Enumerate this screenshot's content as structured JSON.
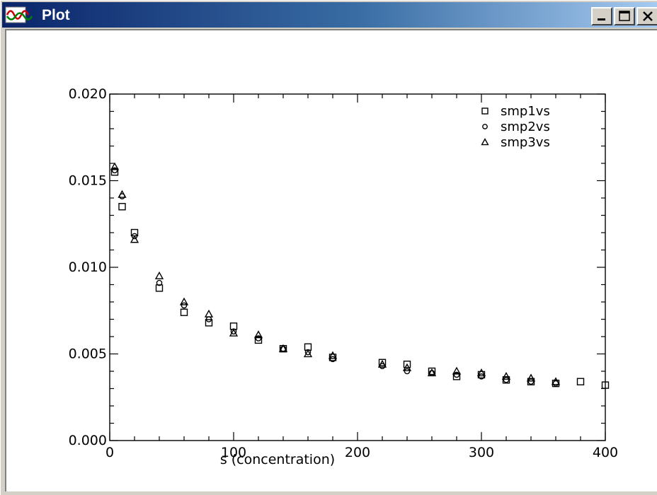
{
  "window": {
    "title": "Plot",
    "icon": "plot-app-icon",
    "controls": [
      "minimize-icon",
      "maximize-icon",
      "close-icon"
    ]
  },
  "chart_data": {
    "type": "scatter",
    "title": "",
    "xlabel": "s (concentration)",
    "ylabel": "",
    "xlim": [
      0,
      400
    ],
    "ylim": [
      0,
      0.02
    ],
    "xticks": [
      {
        "value": 0,
        "label": "0"
      },
      {
        "value": 100,
        "label": "100"
      },
      {
        "value": 200,
        "label": "200"
      },
      {
        "value": 300,
        "label": "300"
      },
      {
        "value": 400,
        "label": "400"
      }
    ],
    "yticks": [
      {
        "value": 0,
        "label": "0.000"
      },
      {
        "value": 0.005,
        "label": "0.005"
      },
      {
        "value": 0.01,
        "label": "0.010"
      },
      {
        "value": 0.015,
        "label": "0.015"
      },
      {
        "value": 0.02,
        "label": "0.020"
      }
    ],
    "grid": false,
    "legend_position": "top-right",
    "series": [
      {
        "name": "smp1vs",
        "marker": "square",
        "points": [
          [
            4,
            0.0155
          ],
          [
            10,
            0.0135
          ],
          [
            20,
            0.012
          ],
          [
            40,
            0.0088
          ],
          [
            60,
            0.0074
          ],
          [
            80,
            0.0068
          ],
          [
            100,
            0.0066
          ],
          [
            120,
            0.0058
          ],
          [
            140,
            0.0053
          ],
          [
            160,
            0.0054
          ],
          [
            180,
            0.0048
          ],
          [
            220,
            0.0045
          ],
          [
            240,
            0.0044
          ],
          [
            260,
            0.004
          ],
          [
            280,
            0.0037
          ],
          [
            300,
            0.0038
          ],
          [
            320,
            0.0035
          ],
          [
            340,
            0.0034
          ],
          [
            360,
            0.0033
          ],
          [
            380,
            0.0034
          ],
          [
            400,
            0.0032
          ]
        ]
      },
      {
        "name": "smp2vs",
        "marker": "circle",
        "points": [
          [
            4,
            0.0156
          ],
          [
            10,
            0.0141
          ],
          [
            20,
            0.0118
          ],
          [
            40,
            0.0091
          ],
          [
            60,
            0.0078
          ],
          [
            80,
            0.007
          ],
          [
            100,
            0.0063
          ],
          [
            120,
            0.0059
          ],
          [
            140,
            0.0053
          ],
          [
            160,
            0.0051
          ],
          [
            180,
            0.0047
          ],
          [
            220,
            0.0043
          ],
          [
            240,
            0.004
          ],
          [
            260,
            0.0039
          ],
          [
            280,
            0.0038
          ],
          [
            300,
            0.0037
          ],
          [
            320,
            0.0035
          ],
          [
            340,
            0.0034
          ],
          [
            360,
            0.0033
          ]
        ]
      },
      {
        "name": "smp3vs",
        "marker": "triangle",
        "points": [
          [
            4,
            0.0158
          ],
          [
            10,
            0.0142
          ],
          [
            20,
            0.0116
          ],
          [
            40,
            0.0095
          ],
          [
            60,
            0.008
          ],
          [
            80,
            0.0073
          ],
          [
            100,
            0.0062
          ],
          [
            120,
            0.0061
          ],
          [
            140,
            0.0053
          ],
          [
            160,
            0.005
          ],
          [
            180,
            0.0049
          ],
          [
            220,
            0.0044
          ],
          [
            240,
            0.0042
          ],
          [
            260,
            0.0039
          ],
          [
            280,
            0.004
          ],
          [
            300,
            0.0039
          ],
          [
            320,
            0.0037
          ],
          [
            340,
            0.0036
          ],
          [
            360,
            0.0034
          ]
        ]
      }
    ]
  }
}
